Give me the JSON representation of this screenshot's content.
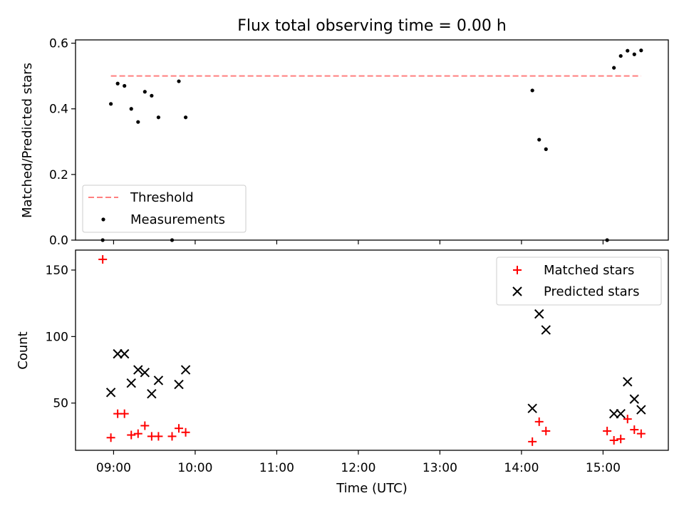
{
  "title": "Flux total observing time = 0.00 h",
  "chart_data": [
    {
      "type": "scatter",
      "ylabel": "Matched/Predicted stars",
      "ylim": [
        0,
        0.61
      ],
      "yticks": [
        0.0,
        0.2,
        0.4,
        0.6
      ],
      "ytick_labels": [
        "0.0",
        "0.2",
        "0.4",
        "0.6"
      ],
      "legend_position": "lower-left",
      "threshold": {
        "name": "Threshold",
        "value": 0.5,
        "x_start": "08:58",
        "x_end": "15:28",
        "color": "#ff7f7f"
      },
      "series": [
        {
          "name": "Measurements",
          "marker": "dot",
          "color": "#000000",
          "x": [
            "08:52",
            "08:58",
            "09:03",
            "09:08",
            "09:13",
            "09:18",
            "09:23",
            "09:28",
            "09:33",
            "09:43",
            "09:48",
            "09:53",
            "14:08",
            "14:13",
            "14:18",
            "15:03",
            "15:08",
            "15:13",
            "15:18",
            "15:23",
            "15:28"
          ],
          "y": [
            0.0,
            0.415,
            0.477,
            0.47,
            0.4,
            0.36,
            0.452,
            0.44,
            0.374,
            0.0,
            0.484,
            0.374,
            0.456,
            0.306,
            0.277,
            0.0,
            0.525,
            0.561,
            0.577,
            0.566,
            0.578
          ]
        }
      ]
    },
    {
      "type": "scatter",
      "xlabel": "Time (UTC)",
      "ylabel": "Count",
      "ylim": [
        14.5,
        165
      ],
      "yticks": [
        50,
        100,
        150
      ],
      "ytick_labels": [
        "50",
        "100",
        "150"
      ],
      "xlim": [
        "08:32",
        "15:48"
      ],
      "xticks": [
        "09:00",
        "10:00",
        "11:00",
        "12:00",
        "13:00",
        "14:00",
        "15:00"
      ],
      "legend_position": "upper-right",
      "series": [
        {
          "name": "Matched stars",
          "marker": "plus",
          "color": "#ff0000",
          "x": [
            "08:52",
            "08:58",
            "09:03",
            "09:08",
            "09:13",
            "09:18",
            "09:23",
            "09:28",
            "09:33",
            "09:43",
            "09:48",
            "09:53",
            "14:08",
            "14:13",
            "14:18",
            "15:03",
            "15:08",
            "15:13",
            "15:18",
            "15:23",
            "15:28"
          ],
          "y": [
            158,
            24,
            42,
            42,
            26,
            27,
            33,
            25,
            25,
            25,
            31,
            28,
            21,
            36,
            29,
            29,
            22,
            23,
            38,
            30,
            27
          ]
        },
        {
          "name": "Predicted stars",
          "marker": "x",
          "color": "#000000",
          "x": [
            "08:58",
            "09:03",
            "09:08",
            "09:13",
            "09:18",
            "09:23",
            "09:28",
            "09:33",
            "09:48",
            "09:53",
            "14:08",
            "14:13",
            "14:18",
            "15:08",
            "15:13",
            "15:18",
            "15:23",
            "15:28"
          ],
          "y": [
            58,
            87,
            87,
            65,
            75,
            73,
            57,
            67,
            64,
            75,
            46,
            117,
            105,
            42,
            42,
            66,
            53,
            45
          ]
        }
      ]
    }
  ]
}
